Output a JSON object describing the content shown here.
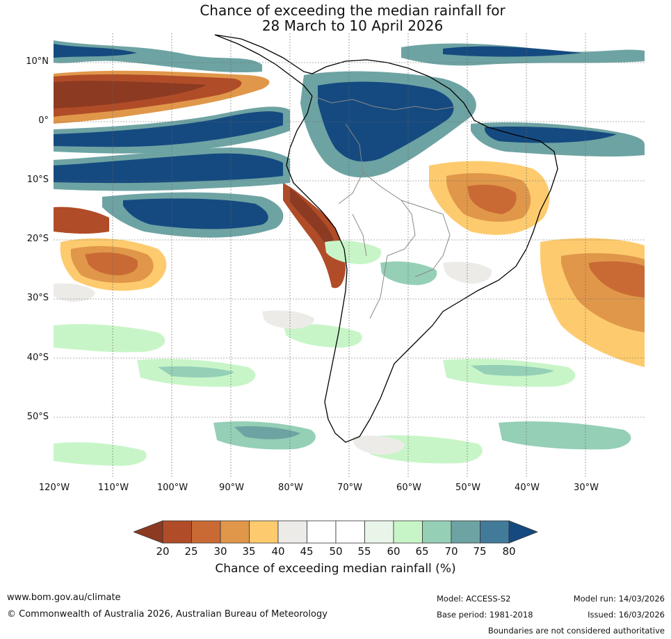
{
  "title": {
    "line1": "Chance of exceeding the median rainfall for",
    "line2": "28 March to 10 April 2026"
  },
  "map": {
    "lat_labels": [
      "10°N",
      "0°",
      "10°S",
      "20°S",
      "30°S",
      "40°S",
      "50°S"
    ],
    "lon_labels": [
      "120°W",
      "110°W",
      "100°W",
      "90°W",
      "80°W",
      "70°W",
      "60°W",
      "50°W",
      "40°W",
      "30°W"
    ]
  },
  "colorbar": {
    "ticks": [
      "20",
      "25",
      "30",
      "35",
      "40",
      "45",
      "50",
      "55",
      "60",
      "65",
      "70",
      "75",
      "80"
    ],
    "label": "Chance of exceeding median rainfall (%)",
    "colors": [
      "#8c3a22",
      "#b04c28",
      "#c96a35",
      "#e0974a",
      "#fdcb6e",
      "#edebe8",
      "#ffffff",
      "#ffffff",
      "#e9f5e9",
      "#c8f5c8",
      "#94cfb6",
      "#6ea3a3",
      "#427a9a",
      "#154a80"
    ]
  },
  "footer": {
    "website": "www.bom.gov.au/climate",
    "copyright": "© Commonwealth of Australia 2026, Australian Bureau of Meteorology",
    "model": "Model: ACCESS-S2",
    "base_period": "Base period: 1981-2018",
    "model_run": "Model run: 14/03/2026",
    "issued": "Issued: 16/03/2026",
    "disclaimer": "Boundaries are not considered authoritative"
  }
}
